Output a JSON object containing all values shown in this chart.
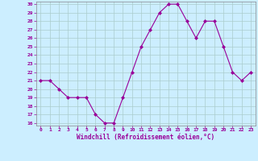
{
  "x": [
    0,
    1,
    2,
    3,
    4,
    5,
    6,
    7,
    8,
    9,
    10,
    11,
    12,
    13,
    14,
    15,
    16,
    17,
    18,
    19,
    20,
    21,
    22,
    23
  ],
  "y": [
    21,
    21,
    20,
    19,
    19,
    19,
    17,
    16,
    16,
    19,
    22,
    25,
    27,
    29,
    30,
    30,
    28,
    26,
    28,
    28,
    25,
    22,
    21,
    22
  ],
  "line_color": "#990099",
  "marker": "D",
  "marker_size": 2,
  "bg_color": "#cceeff",
  "grid_color": "#aacccc",
  "xlabel": "Windchill (Refroidissement éolien,°C)",
  "xlabel_color": "#990099",
  "tick_color": "#990099",
  "ylim": [
    16,
    30
  ],
  "xlim": [
    -0.5,
    23.5
  ],
  "yticks": [
    16,
    17,
    18,
    19,
    20,
    21,
    22,
    23,
    24,
    25,
    26,
    27,
    28,
    29,
    30
  ],
  "xticks": [
    0,
    1,
    2,
    3,
    4,
    5,
    6,
    7,
    8,
    9,
    10,
    11,
    12,
    13,
    14,
    15,
    16,
    17,
    18,
    19,
    20,
    21,
    22,
    23
  ]
}
